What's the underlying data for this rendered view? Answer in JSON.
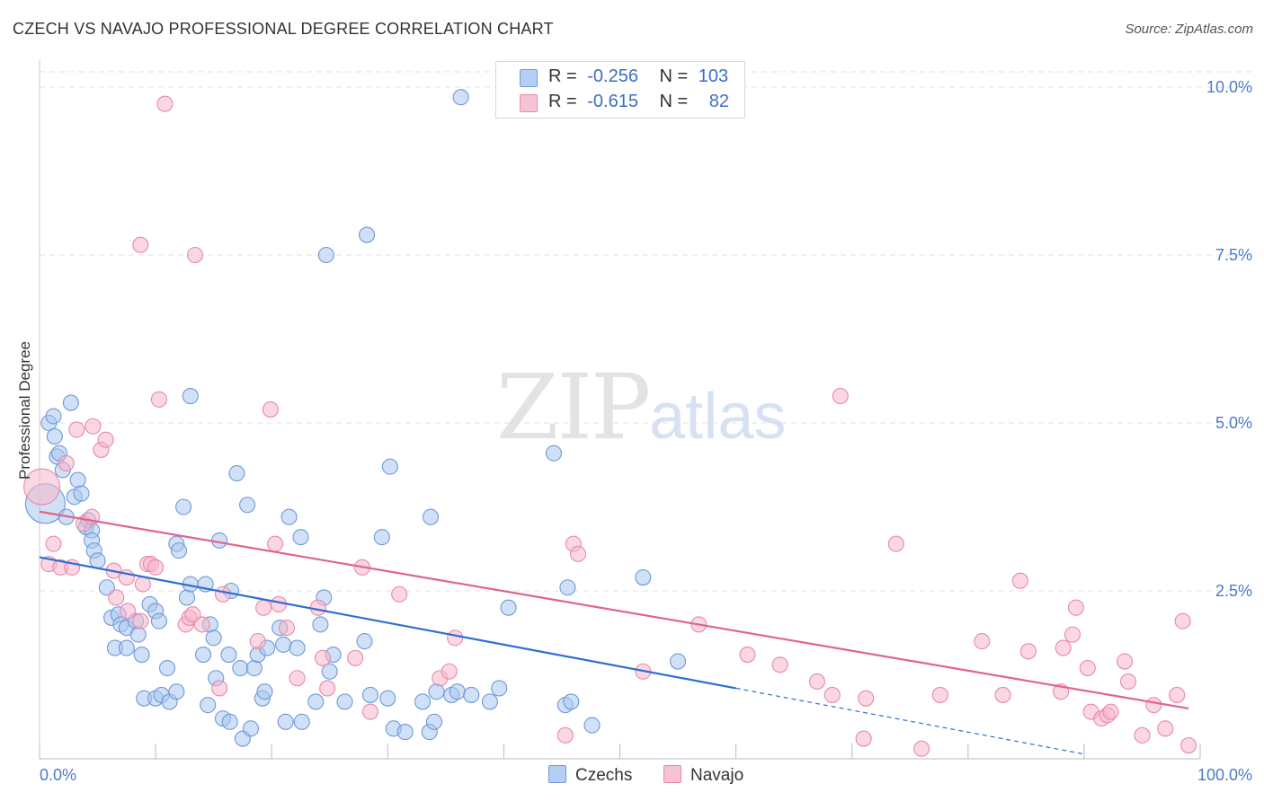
{
  "header": {
    "title": "CZECH VS NAVAJO PROFESSIONAL DEGREE CORRELATION CHART",
    "source": "Source: ZipAtlas.com"
  },
  "watermark": {
    "zip": "ZIP",
    "atlas": "atlas"
  },
  "legend": {
    "rows": [
      {
        "r_label": "R =",
        "r_value": "-0.256",
        "n_label": "N =",
        "n_value": "103"
      },
      {
        "r_label": "R =",
        "r_value": "-0.615",
        "n_label": "N =",
        "n_value": "82"
      }
    ],
    "bottom": [
      "Czechs",
      "Navajo"
    ]
  },
  "colors": {
    "czechs_fill": "#a9c6ee",
    "czechs_stroke": "#6f9ad8",
    "czechs_line": "#2f6fd0",
    "navajo_fill": "#f5b6ca",
    "navajo_stroke": "#e88aa9",
    "navajo_line": "#e0648e",
    "tick_text": "#4a7bc8",
    "grid": "#e2e2e2"
  },
  "chart_data": {
    "type": "scatter",
    "title": "CZECH VS NAVAJO PROFESSIONAL DEGREE CORRELATION CHART",
    "xlabel": "",
    "ylabel": "Professional Degree",
    "xlim": [
      0,
      100
    ],
    "ylim": [
      0,
      10.25
    ],
    "x_ticks": [
      "0.0%",
      "100.0%"
    ],
    "y_ticks": [
      {
        "value": 2.5,
        "label": "2.5%"
      },
      {
        "value": 5.0,
        "label": "5.0%"
      },
      {
        "value": 7.5,
        "label": "7.5%"
      },
      {
        "value": 10.0,
        "label": "10.0%"
      }
    ],
    "grid": true,
    "legend_position": "top-center",
    "series": [
      {
        "name": "Czechs",
        "R": -0.256,
        "N": 103,
        "trend": {
          "x0": 0,
          "y0": 3.0,
          "x1": 60,
          "y1": 1.05,
          "dashed_to_x": 90,
          "dashed_to_y": 0.07
        },
        "points": [
          [
            0.5,
            3.8
          ],
          [
            0.8,
            5.0
          ],
          [
            1.2,
            5.1
          ],
          [
            1.3,
            4.8
          ],
          [
            1.5,
            4.5
          ],
          [
            1.7,
            4.55
          ],
          [
            2.0,
            4.3
          ],
          [
            2.7,
            5.3
          ],
          [
            3.0,
            3.9
          ],
          [
            3.3,
            4.15
          ],
          [
            3.6,
            3.95
          ],
          [
            2.3,
            3.6
          ],
          [
            4.0,
            3.45
          ],
          [
            4.2,
            3.55
          ],
          [
            4.5,
            3.4
          ],
          [
            4.5,
            3.25
          ],
          [
            4.7,
            3.1
          ],
          [
            5.0,
            2.95
          ],
          [
            5.8,
            2.55
          ],
          [
            6.2,
            2.1
          ],
          [
            6.8,
            2.15
          ],
          [
            7.0,
            2.0
          ],
          [
            7.5,
            1.95
          ],
          [
            8.3,
            2.05
          ],
          [
            8.5,
            1.85
          ],
          [
            9.5,
            2.3
          ],
          [
            10.0,
            2.2
          ],
          [
            10.3,
            2.05
          ],
          [
            6.5,
            1.65
          ],
          [
            7.5,
            1.65
          ],
          [
            8.8,
            1.55
          ],
          [
            11.0,
            1.35
          ],
          [
            9.0,
            0.9
          ],
          [
            10.0,
            0.9
          ],
          [
            10.5,
            0.95
          ],
          [
            11.2,
            0.85
          ],
          [
            11.8,
            1.0
          ],
          [
            11.8,
            3.2
          ],
          [
            12.0,
            3.1
          ],
          [
            12.4,
            3.75
          ],
          [
            12.7,
            2.4
          ],
          [
            13.0,
            2.6
          ],
          [
            13.0,
            5.4
          ],
          [
            14.1,
            1.55
          ],
          [
            14.3,
            2.6
          ],
          [
            14.7,
            2.0
          ],
          [
            15.0,
            1.8
          ],
          [
            14.5,
            0.8
          ],
          [
            15.2,
            1.2
          ],
          [
            15.5,
            3.25
          ],
          [
            15.8,
            0.6
          ],
          [
            16.3,
            1.55
          ],
          [
            16.4,
            0.55
          ],
          [
            16.5,
            2.5
          ],
          [
            17.0,
            4.25
          ],
          [
            17.3,
            1.35
          ],
          [
            17.5,
            0.3
          ],
          [
            17.9,
            3.78
          ],
          [
            18.2,
            0.45
          ],
          [
            18.5,
            1.35
          ],
          [
            18.8,
            1.55
          ],
          [
            19.2,
            0.9
          ],
          [
            19.4,
            1.0
          ],
          [
            19.6,
            1.65
          ],
          [
            20.7,
            1.95
          ],
          [
            21.0,
            1.7
          ],
          [
            21.2,
            0.55
          ],
          [
            21.5,
            3.6
          ],
          [
            22.2,
            1.65
          ],
          [
            22.5,
            3.3
          ],
          [
            22.6,
            0.55
          ],
          [
            23.8,
            0.85
          ],
          [
            24.2,
            2.0
          ],
          [
            24.5,
            2.4
          ],
          [
            24.7,
            7.5
          ],
          [
            25.0,
            1.3
          ],
          [
            25.3,
            1.55
          ],
          [
            26.3,
            0.85
          ],
          [
            28.0,
            1.75
          ],
          [
            28.2,
            7.8
          ],
          [
            28.5,
            0.95
          ],
          [
            29.5,
            3.3
          ],
          [
            30.0,
            0.9
          ],
          [
            30.2,
            4.35
          ],
          [
            30.5,
            0.45
          ],
          [
            31.5,
            0.4
          ],
          [
            33.0,
            0.85
          ],
          [
            33.6,
            0.4
          ],
          [
            33.7,
            3.6
          ],
          [
            34.0,
            0.55
          ],
          [
            34.2,
            1.0
          ],
          [
            35.5,
            0.95
          ],
          [
            36.0,
            1.0
          ],
          [
            36.3,
            9.85
          ],
          [
            37.2,
            0.95
          ],
          [
            38.8,
            0.85
          ],
          [
            39.6,
            1.05
          ],
          [
            40.4,
            2.25
          ],
          [
            44.3,
            4.55
          ],
          [
            45.3,
            0.8
          ],
          [
            45.5,
            2.55
          ],
          [
            45.8,
            0.85
          ],
          [
            47.6,
            0.5
          ],
          [
            52.0,
            2.7
          ],
          [
            55.0,
            1.45
          ]
        ]
      },
      {
        "name": "Navajo",
        "R": -0.615,
        "N": 82,
        "trend": {
          "x0": 0,
          "y0": 3.68,
          "x1": 99,
          "y1": 0.75
        },
        "points": [
          [
            0.2,
            4.05
          ],
          [
            0.8,
            2.9
          ],
          [
            1.2,
            3.2
          ],
          [
            1.8,
            2.85
          ],
          [
            2.3,
            4.4
          ],
          [
            2.8,
            2.85
          ],
          [
            3.2,
            4.9
          ],
          [
            3.8,
            3.5
          ],
          [
            4.5,
            3.6
          ],
          [
            4.6,
            4.95
          ],
          [
            5.3,
            4.6
          ],
          [
            5.7,
            4.75
          ],
          [
            6.4,
            2.8
          ],
          [
            6.6,
            2.4
          ],
          [
            7.6,
            2.2
          ],
          [
            7.5,
            2.7
          ],
          [
            8.7,
            2.05
          ],
          [
            8.9,
            2.6
          ],
          [
            9.3,
            2.9
          ],
          [
            9.6,
            2.9
          ],
          [
            10.0,
            2.85
          ],
          [
            8.7,
            7.65
          ],
          [
            10.3,
            5.35
          ],
          [
            10.8,
            9.75
          ],
          [
            12.6,
            2.0
          ],
          [
            12.9,
            2.1
          ],
          [
            13.2,
            2.15
          ],
          [
            13.4,
            7.5
          ],
          [
            14.0,
            2.0
          ],
          [
            15.5,
            1.05
          ],
          [
            15.8,
            2.45
          ],
          [
            18.8,
            1.75
          ],
          [
            19.3,
            2.25
          ],
          [
            19.9,
            5.2
          ],
          [
            20.3,
            3.2
          ],
          [
            20.6,
            2.3
          ],
          [
            21.3,
            1.95
          ],
          [
            22.2,
            1.2
          ],
          [
            24.0,
            2.25
          ],
          [
            24.4,
            1.5
          ],
          [
            24.8,
            1.05
          ],
          [
            27.2,
            1.5
          ],
          [
            27.8,
            2.85
          ],
          [
            28.5,
            0.7
          ],
          [
            31.0,
            2.45
          ],
          [
            34.5,
            1.2
          ],
          [
            35.3,
            1.3
          ],
          [
            35.8,
            1.8
          ],
          [
            45.3,
            0.35
          ],
          [
            46.0,
            3.2
          ],
          [
            46.4,
            3.05
          ],
          [
            52.0,
            1.3
          ],
          [
            56.8,
            2.0
          ],
          [
            61.0,
            1.55
          ],
          [
            63.8,
            1.4
          ],
          [
            67.0,
            1.15
          ],
          [
            68.3,
            0.95
          ],
          [
            69.0,
            5.4
          ],
          [
            71.0,
            0.3
          ],
          [
            71.2,
            0.9
          ],
          [
            73.8,
            3.2
          ],
          [
            76.0,
            0.15
          ],
          [
            77.6,
            0.95
          ],
          [
            81.2,
            1.75
          ],
          [
            83.0,
            0.95
          ],
          [
            84.5,
            2.65
          ],
          [
            85.2,
            1.6
          ],
          [
            88.0,
            1.0
          ],
          [
            88.2,
            1.65
          ],
          [
            89.0,
            1.85
          ],
          [
            89.3,
            2.25
          ],
          [
            90.3,
            1.35
          ],
          [
            90.6,
            0.7
          ],
          [
            91.5,
            0.6
          ],
          [
            92.0,
            0.65
          ],
          [
            92.3,
            0.7
          ],
          [
            93.5,
            1.45
          ],
          [
            93.8,
            1.15
          ],
          [
            95.0,
            0.35
          ],
          [
            96.0,
            0.8
          ],
          [
            97.0,
            0.45
          ],
          [
            98.0,
            0.95
          ],
          [
            98.5,
            2.05
          ],
          [
            99.0,
            0.2
          ]
        ]
      }
    ]
  }
}
